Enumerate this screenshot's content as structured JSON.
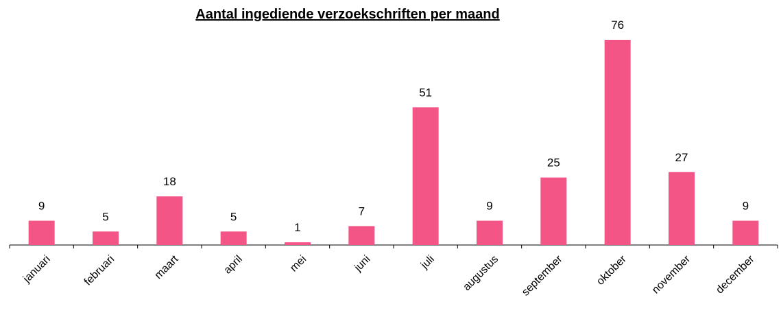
{
  "chart_data": {
    "type": "bar",
    "title": "Aantal ingediende verzoekschriften per maand",
    "categories": [
      "januari",
      "februari",
      "maart",
      "april",
      "mei",
      "juni",
      "juli",
      "augustus",
      "september",
      "oktober",
      "november",
      "december"
    ],
    "values": [
      9,
      5,
      18,
      5,
      1,
      7,
      51,
      9,
      25,
      76,
      27,
      9
    ],
    "color": "#f25586"
  }
}
